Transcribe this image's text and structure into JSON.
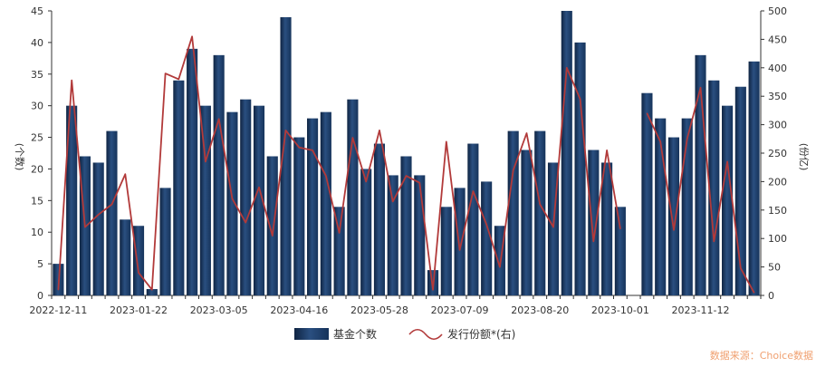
{
  "chart_data": {
    "type": "bar",
    "ylabel": "(个数)",
    "ylabel_right": "(份亿)",
    "ylim": [
      0,
      45
    ],
    "ylim_right": [
      0,
      500
    ],
    "yticks": [
      0,
      5,
      10,
      15,
      20,
      25,
      30,
      35,
      40,
      45
    ],
    "yticks_right": [
      0,
      50,
      100,
      150,
      200,
      250,
      300,
      350,
      400,
      450,
      500
    ],
    "x_tick_labels": [
      "2022-12-11",
      "2023-01-22",
      "2023-03-05",
      "2023-04-16",
      "2023-05-28",
      "2023-07-09",
      "2023-08-20",
      "2023-10-01",
      "2023-11-12"
    ],
    "x_tick_positions": [
      0,
      6,
      12,
      18,
      24,
      30,
      36,
      42,
      48
    ],
    "categories": [
      "2022-12-11",
      "2022-12-18",
      "2022-12-25",
      "2023-01-01",
      "2023-01-08",
      "2023-01-15",
      "2023-01-22",
      "2023-01-29",
      "2023-02-05",
      "2023-02-12",
      "2023-02-19",
      "2023-02-26",
      "2023-03-05",
      "2023-03-12",
      "2023-03-19",
      "2023-03-26",
      "2023-04-02",
      "2023-04-09",
      "2023-04-16",
      "2023-04-23",
      "2023-04-30",
      "2023-05-07",
      "2023-05-14",
      "2023-05-21",
      "2023-05-28",
      "2023-06-04",
      "2023-06-11",
      "2023-06-18",
      "2023-06-25",
      "2023-07-02",
      "2023-07-09",
      "2023-07-16",
      "2023-07-23",
      "2023-07-30",
      "2023-08-06",
      "2023-08-13",
      "2023-08-20",
      "2023-08-27",
      "2023-09-03",
      "2023-09-10",
      "2023-09-17",
      "2023-09-24",
      "2023-10-01",
      "2023-10-08",
      "2023-10-15",
      "2023-10-22",
      "2023-10-29",
      "2023-11-05",
      "2023-11-12",
      "2023-11-19",
      "2023-11-26",
      "2023-12-03",
      "2023-12-10"
    ],
    "series": [
      {
        "name": "基金个数",
        "type": "bar",
        "axis": "left",
        "color": "#1f3d66",
        "values": [
          5,
          30,
          22,
          21,
          26,
          12,
          11,
          1,
          17,
          34,
          39,
          30,
          38,
          29,
          31,
          30,
          22,
          44,
          25,
          28,
          29,
          14,
          31,
          20,
          24,
          19,
          22,
          19,
          4,
          14,
          17,
          24,
          18,
          11,
          26,
          23,
          26,
          21,
          45,
          40,
          23,
          21,
          14,
          0,
          32,
          28,
          25,
          28,
          38,
          34,
          30,
          33,
          37
        ]
      },
      {
        "name": "发行份额*(右)",
        "type": "line",
        "axis": "right",
        "color": "#b23a3a",
        "values": [
          10,
          378,
          120,
          142,
          160,
          213,
          40,
          10,
          390,
          380,
          455,
          235,
          310,
          170,
          128,
          190,
          105,
          290,
          260,
          255,
          210,
          110,
          277,
          200,
          290,
          165,
          210,
          198,
          10,
          270,
          80,
          183,
          125,
          50,
          220,
          285,
          160,
          120,
          400,
          345,
          95,
          255,
          117,
          null,
          320,
          270,
          115,
          275,
          365,
          95,
          235,
          48,
          5
        ]
      }
    ],
    "legend": [
      "基金个数",
      "发行份额*(右)"
    ],
    "legend_position": "bottom",
    "grid": false,
    "source_note": "数据来源：Choice数据"
  }
}
